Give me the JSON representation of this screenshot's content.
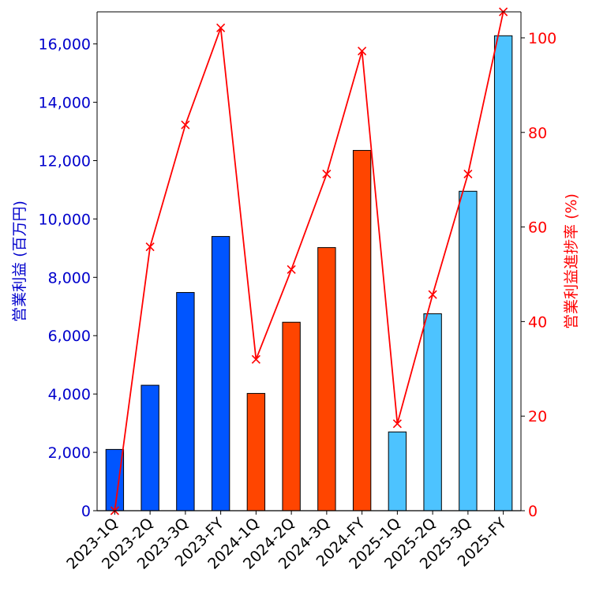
{
  "chart_data": {
    "type": "bar+line",
    "categories": [
      "2023-1Q",
      "2023-2Q",
      "2023-3Q",
      "2023-FY",
      "2024-1Q",
      "2024-2Q",
      "2024-3Q",
      "2024-FY",
      "2025-1Q",
      "2025-2Q",
      "2025-3Q",
      "2025-FY"
    ],
    "bar_series": {
      "name": "営業利益 (百万円)",
      "values": [
        2100,
        4300,
        7480,
        9400,
        4020,
        6460,
        9020,
        12350,
        2700,
        6750,
        10950,
        16280
      ],
      "colors": [
        "#0055ff",
        "#0055ff",
        "#0055ff",
        "#0055ff",
        "#ff4500",
        "#ff4500",
        "#ff4500",
        "#ff4500",
        "#4dc3ff",
        "#4dc3ff",
        "#4dc3ff",
        "#4dc3ff"
      ]
    },
    "line_series": {
      "name": "営業利益進捗率 (%)",
      "values": [
        0,
        55.8,
        81.6,
        102.1,
        32.0,
        51.0,
        71.2,
        97.2,
        18.4,
        45.7,
        71.2,
        105.5
      ],
      "color": "#ff0000",
      "marker": "x"
    },
    "left_axis": {
      "label": "営業利益 (百万円)",
      "ylim": [
        0,
        17100
      ],
      "ticks": [
        0,
        2000,
        4000,
        6000,
        8000,
        10000,
        12000,
        14000,
        16000
      ],
      "tick_labels": [
        "0",
        "2,000",
        "4,000",
        "6,000",
        "8,000",
        "10,000",
        "12,000",
        "14,000",
        "16,000"
      ],
      "color": "#0000cc"
    },
    "right_axis": {
      "label": "営業利益進捗率 (%)",
      "ylim": [
        0,
        105.5
      ],
      "ticks": [
        0,
        20,
        40,
        60,
        80,
        100
      ],
      "tick_labels": [
        "0",
        "20",
        "40",
        "60",
        "80",
        "100"
      ],
      "color": "#ff0000"
    },
    "grid": false,
    "title": ""
  }
}
